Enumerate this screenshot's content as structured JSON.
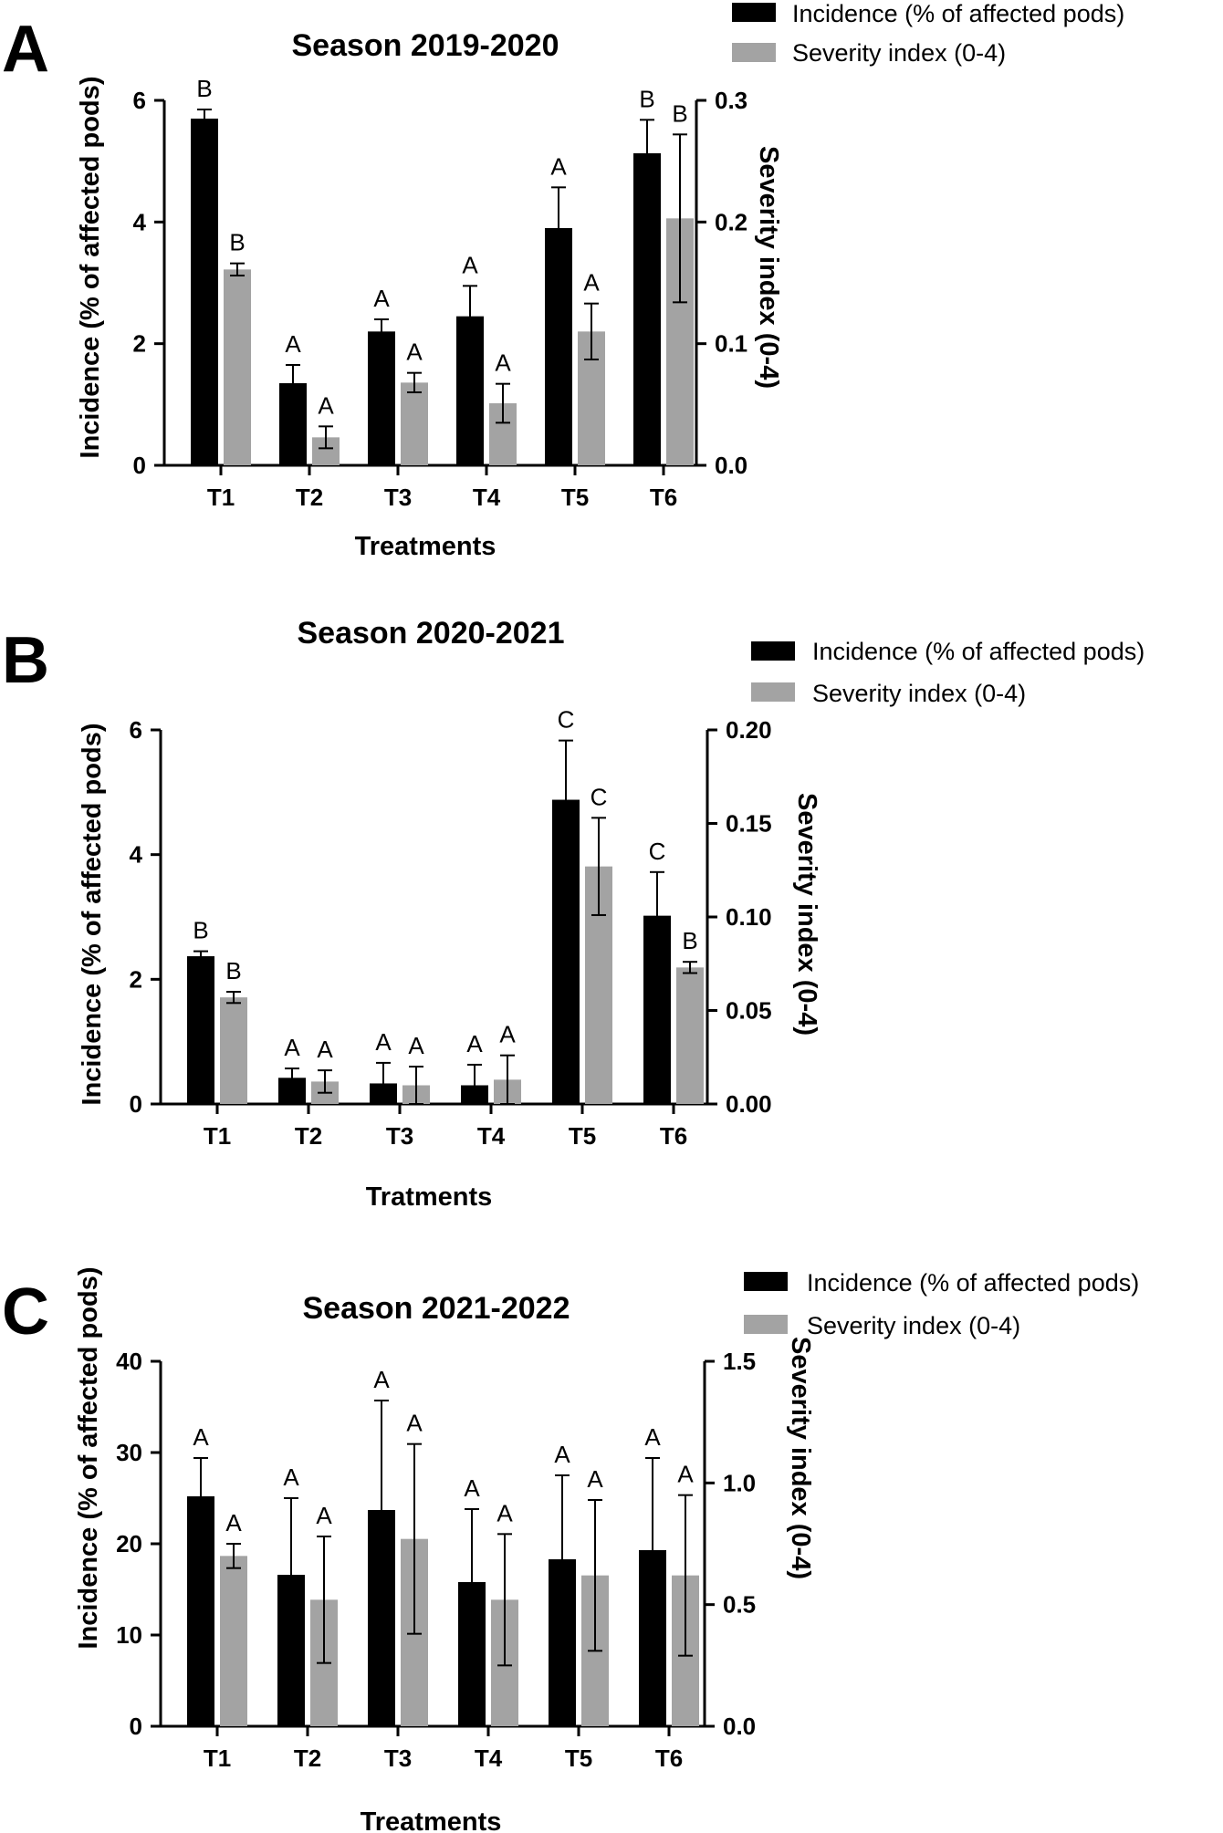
{
  "colors": {
    "incidence": "#000000",
    "severity": "#a3a3a3",
    "axis": "#000000"
  },
  "chart_data": [
    {
      "panel": "A",
      "type": "bar",
      "title": "Season 2019-2020",
      "xlabel": "Treatments",
      "ylabel": "Incidence (% of affected pods)",
      "y2label": "Severity index (0-4)",
      "categories": [
        "T1",
        "T2",
        "T3",
        "T4",
        "T5",
        "T6"
      ],
      "ylim": [
        0,
        6
      ],
      "yticks": [
        0,
        2,
        4,
        6
      ],
      "y2lim": [
        0,
        0.3
      ],
      "y2ticks": [
        "0.0",
        "0.1",
        "0.2",
        "0.3"
      ],
      "legend_position": "top-right",
      "series": [
        {
          "name": "Incidence (% of affected pods)",
          "axis": "left",
          "values": [
            5.7,
            1.35,
            2.2,
            2.45,
            3.9,
            5.13
          ],
          "errors": [
            0.15,
            0.3,
            0.2,
            0.5,
            0.67,
            0.55
          ],
          "letters": [
            "B",
            "A",
            "A",
            "A",
            "A",
            "B"
          ]
        },
        {
          "name": "Severity index (0-4)",
          "axis": "right",
          "values": [
            0.161,
            0.023,
            0.068,
            0.051,
            0.11,
            0.203
          ],
          "errors": [
            0.005,
            0.009,
            0.008,
            0.016,
            0.023,
            0.069
          ],
          "letters": [
            "B",
            "A",
            "A",
            "A",
            "A",
            "B"
          ]
        }
      ]
    },
    {
      "panel": "B",
      "type": "bar",
      "title": "Season 2020-2021",
      "xlabel": "Tratments",
      "ylabel": "Incidence (% of affected pods)",
      "y2label": "Severity index (0-4)",
      "categories": [
        "T1",
        "T2",
        "T3",
        "T4",
        "T5",
        "T6"
      ],
      "ylim": [
        0,
        6
      ],
      "yticks": [
        0,
        2,
        4,
        6
      ],
      "y2lim": [
        0,
        0.2
      ],
      "y2ticks": [
        "0.00",
        "0.05",
        "0.10",
        "0.15",
        "0.20"
      ],
      "legend_position": "top-right",
      "series": [
        {
          "name": "Incidence (% of affected pods)",
          "axis": "left",
          "values": [
            2.37,
            0.42,
            0.33,
            0.3,
            4.88,
            3.02
          ],
          "errors": [
            0.08,
            0.15,
            0.33,
            0.33,
            0.95,
            0.7
          ],
          "letters": [
            "B",
            "A",
            "A",
            "A",
            "C",
            "C"
          ]
        },
        {
          "name": "Severity index (0-4)",
          "axis": "right",
          "values": [
            0.057,
            0.012,
            0.01,
            0.013,
            0.127,
            0.073
          ],
          "errors": [
            0.003,
            0.006,
            0.01,
            0.013,
            0.026,
            0.003
          ],
          "letters": [
            "B",
            "A",
            "A",
            "A",
            "C",
            "B"
          ]
        }
      ]
    },
    {
      "panel": "C",
      "type": "bar",
      "title": "Season 2021-2022",
      "xlabel": "Treatments",
      "ylabel": "Incidence (% of affected pods)",
      "y2label": "Severity index (0-4)",
      "categories": [
        "T1",
        "T2",
        "T3",
        "T4",
        "T5",
        "T6"
      ],
      "ylim": [
        0,
        40
      ],
      "yticks": [
        0,
        10,
        20,
        30,
        40
      ],
      "y2lim": [
        0,
        1.5
      ],
      "y2ticks": [
        "0.0",
        "0.5",
        "1.0",
        "1.5"
      ],
      "legend_position": "top-right",
      "series": [
        {
          "name": "Incidence (% of affected pods)",
          "axis": "left",
          "values": [
            25.2,
            16.6,
            23.7,
            15.8,
            18.3,
            19.3
          ],
          "errors": [
            4.2,
            8.4,
            12.0,
            8.0,
            9.2,
            10.1
          ],
          "letters": [
            "A",
            "A",
            "A",
            "A",
            "A",
            "A"
          ]
        },
        {
          "name": "Severity index (0-4)",
          "axis": "right",
          "values": [
            0.7,
            0.52,
            0.77,
            0.52,
            0.62,
            0.62
          ],
          "errors": [
            0.05,
            0.26,
            0.39,
            0.27,
            0.31,
            0.33
          ],
          "letters": [
            "A",
            "A",
            "A",
            "A",
            "A",
            "A"
          ]
        }
      ]
    }
  ]
}
